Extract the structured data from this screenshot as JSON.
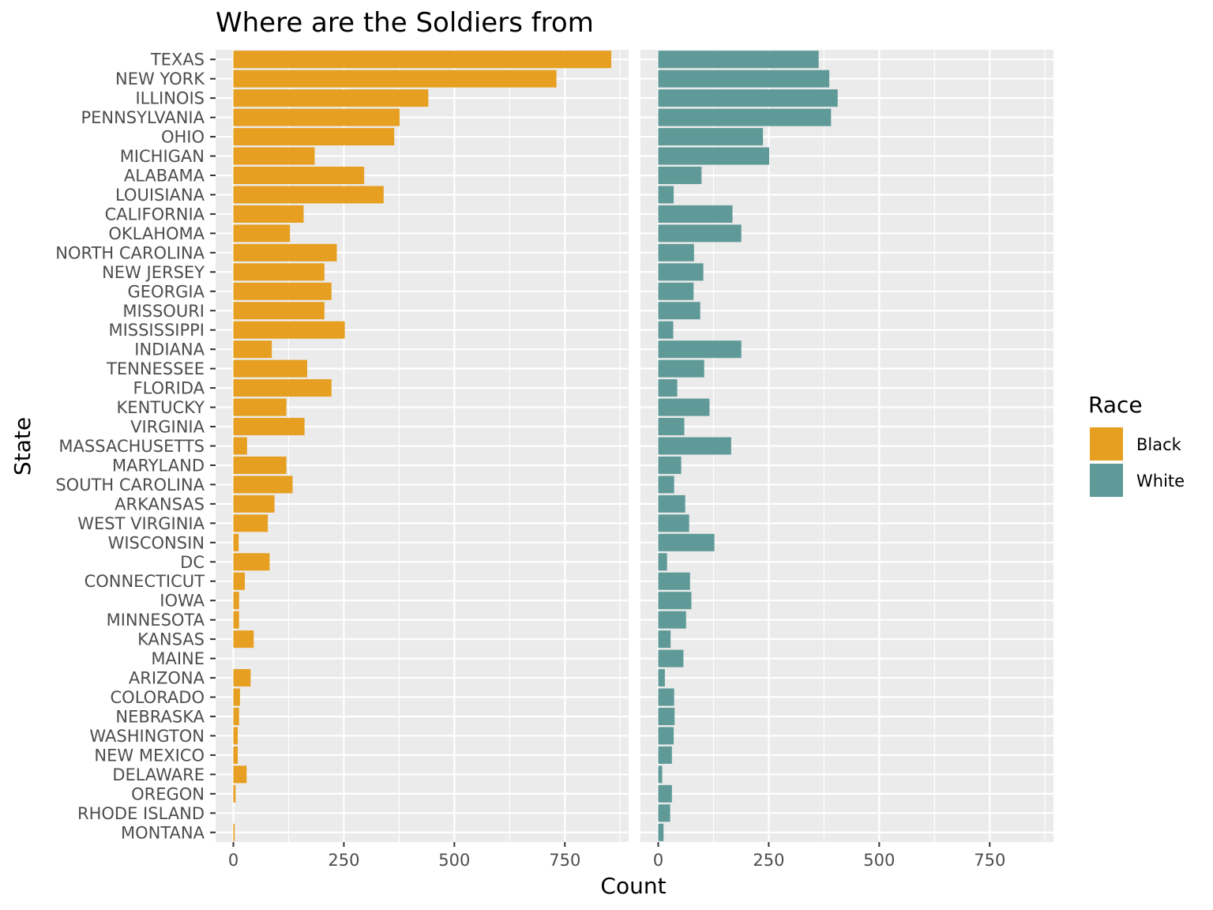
{
  "chart_data": {
    "type": "bar",
    "orientation": "horizontal",
    "title": "Where are the Soldiers from",
    "xlabel": "Count",
    "ylabel": "State",
    "xlim": [
      -40,
      900
    ],
    "x_ticks": [
      0,
      250,
      500,
      750
    ],
    "x_tick_labels": [
      "0",
      "250",
      "500",
      "750"
    ],
    "grid": true,
    "legend_position": "right",
    "legend_title": "Race",
    "facets": [
      "Black",
      "White"
    ],
    "categories": [
      "TEXAS",
      "NEW YORK",
      "ILLINOIS",
      "PENNSYLVANIA",
      "OHIO",
      "MICHIGAN",
      "ALABAMA",
      "LOUISIANA",
      "CALIFORNIA",
      "OKLAHOMA",
      "NORTH CAROLINA",
      "NEW JERSEY",
      "GEORGIA",
      "MISSOURI",
      "MISSISSIPPI",
      "INDIANA",
      "TENNESSEE",
      "FLORIDA",
      "KENTUCKY",
      "VIRGINIA",
      "MASSACHUSETTS",
      "MARYLAND",
      "SOUTH CAROLINA",
      "ARKANSAS",
      "WEST VIRGINIA",
      "WISCONSIN",
      "DC",
      "CONNECTICUT",
      "IOWA",
      "MINNESOTA",
      "KANSAS",
      "MAINE",
      "ARIZONA",
      "COLORADO",
      "NEBRASKA",
      "WASHINGTON",
      "NEW MEXICO",
      "DELAWARE",
      "OREGON",
      "RHODE ISLAND",
      "MONTANA"
    ],
    "series": [
      {
        "name": "Black",
        "color": "#E69F20",
        "values": [
          855,
          731,
          441,
          376,
          364,
          184,
          296,
          340,
          159,
          128,
          234,
          206,
          222,
          206,
          252,
          87,
          167,
          222,
          120,
          161,
          31,
          120,
          134,
          93,
          78,
          12,
          82,
          26,
          13,
          13,
          46,
          0,
          39,
          15,
          13,
          10,
          10,
          30,
          5,
          0,
          3
        ]
      },
      {
        "name": "White",
        "color": "#5F9A98",
        "values": [
          363,
          387,
          406,
          391,
          237,
          251,
          98,
          35,
          168,
          188,
          81,
          102,
          80,
          95,
          34,
          188,
          104,
          43,
          116,
          59,
          165,
          52,
          36,
          61,
          70,
          127,
          20,
          72,
          75,
          63,
          28,
          57,
          15,
          36,
          37,
          35,
          31,
          9,
          31,
          27,
          12
        ]
      }
    ]
  }
}
